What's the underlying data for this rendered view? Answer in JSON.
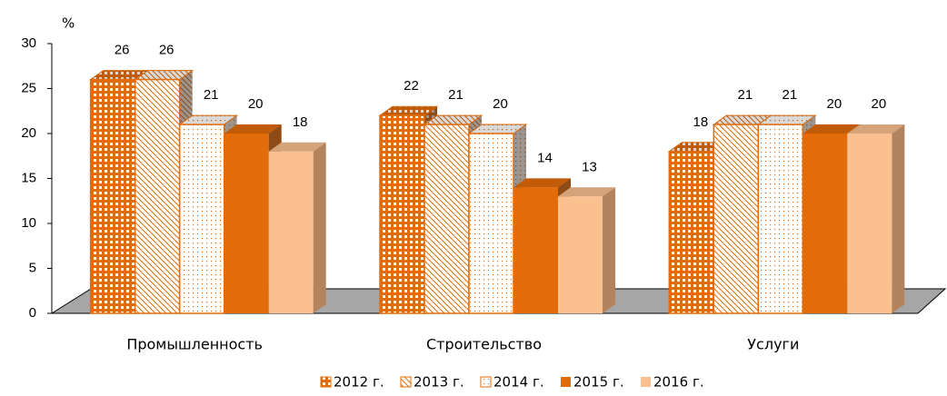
{
  "chart_data": {
    "type": "bar3d",
    "y_unit": "%",
    "categories": [
      "Промышленность",
      "Строительство",
      "Услуги"
    ],
    "series": [
      {
        "name": "2012 г.",
        "color": "#e36c0a",
        "values": [
          26,
          22,
          18
        ]
      },
      {
        "name": "2013 г.",
        "color": "#e36c0a",
        "values": [
          26,
          21,
          21
        ]
      },
      {
        "name": "2014 г.",
        "color": "#e36c0a",
        "values": [
          21,
          20,
          21
        ]
      },
      {
        "name": "2015 г.",
        "color": "#e36c0a",
        "values": [
          20,
          14,
          20
        ]
      },
      {
        "name": "2016 г.",
        "color": "#fac090",
        "values": [
          18,
          13,
          20
        ]
      }
    ],
    "ylim": [
      0,
      30
    ],
    "yticks": [
      0,
      5,
      10,
      15,
      20,
      25,
      30
    ],
    "grid": false,
    "legend": "bottom"
  }
}
